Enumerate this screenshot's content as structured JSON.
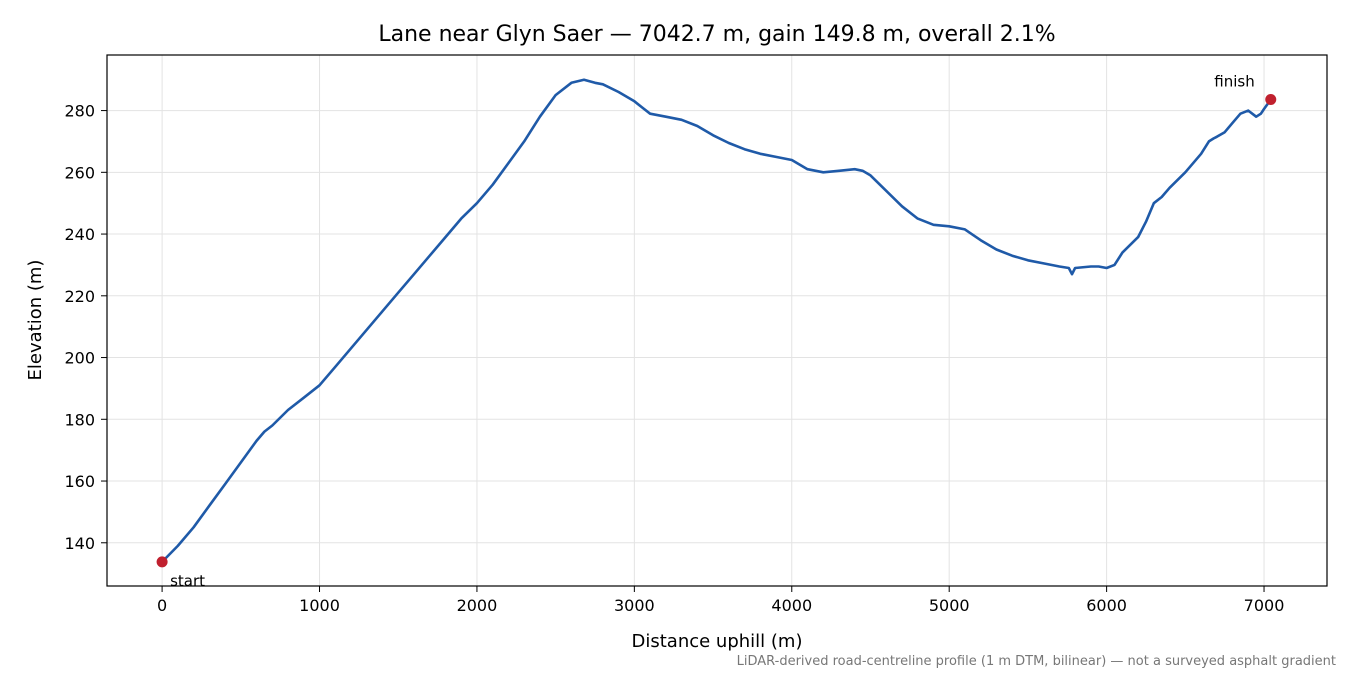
{
  "chart_data": {
    "type": "line",
    "title": "Lane near Glyn Saer — 7042.7 m, gain 149.8 m, overall 2.1%",
    "xlabel": "Distance uphill (m)",
    "ylabel": "Elevation (m)",
    "xlim": [
      -350,
      7400
    ],
    "ylim": [
      126,
      298
    ],
    "xticks": [
      0,
      1000,
      2000,
      3000,
      4000,
      5000,
      6000,
      7000
    ],
    "yticks": [
      140,
      160,
      180,
      200,
      220,
      240,
      260,
      280
    ],
    "grid": true,
    "line_color": "#1f5aa8",
    "marker_color": "#c0202e",
    "series": [
      {
        "x": [
          0,
          100,
          200,
          300,
          400,
          500,
          600,
          650,
          700,
          800,
          900,
          1000,
          1100,
          1200,
          1300,
          1400,
          1500,
          1600,
          1700,
          1800,
          1900,
          2000,
          2100,
          2200,
          2300,
          2400,
          2500,
          2600,
          2680,
          2750,
          2800,
          2900,
          3000,
          3050,
          3100,
          3200,
          3300,
          3400,
          3500,
          3600,
          3700,
          3800,
          3900,
          4000,
          4100,
          4200,
          4300,
          4400,
          4450,
          4500,
          4600,
          4700,
          4800,
          4900,
          5000,
          5100,
          5200,
          5300,
          5400,
          5500,
          5600,
          5700,
          5760,
          5780,
          5800,
          5900,
          5950,
          6000,
          6050,
          6100,
          6200,
          6250,
          6300,
          6350,
          6400,
          6500,
          6600,
          6650,
          6680,
          6700,
          6750,
          6800,
          6850,
          6900,
          6950,
          6980,
          7000,
          7042.7
        ],
        "y": [
          133.8,
          139,
          145,
          152,
          159,
          166,
          173,
          176,
          178,
          183,
          187,
          191,
          197,
          203,
          209,
          215,
          221,
          227,
          233,
          239,
          245,
          250,
          256,
          263,
          270,
          278,
          285,
          289,
          290,
          289,
          288.5,
          286,
          283,
          281,
          279,
          278,
          277,
          275,
          272,
          269.5,
          267.5,
          266,
          265,
          264,
          261,
          260,
          260.5,
          261,
          260.5,
          259,
          254,
          249,
          245,
          243,
          242.5,
          241.5,
          238,
          235,
          233,
          231.5,
          230.5,
          229.5,
          229,
          227,
          229,
          229.5,
          229.5,
          229,
          230,
          234,
          239,
          244,
          250,
          252,
          255,
          260,
          266,
          270,
          271,
          271.5,
          273,
          276,
          279,
          280,
          278,
          279,
          280.5,
          283.6
        ]
      }
    ],
    "annotations": [
      {
        "text": "start",
        "x": 0,
        "y": 133.8
      },
      {
        "text": "finish",
        "x": 7042.7,
        "y": 283.6
      }
    ],
    "footnote": "LiDAR-derived road-centreline profile (1 m DTM, bilinear) — not a surveyed asphalt gradient"
  }
}
